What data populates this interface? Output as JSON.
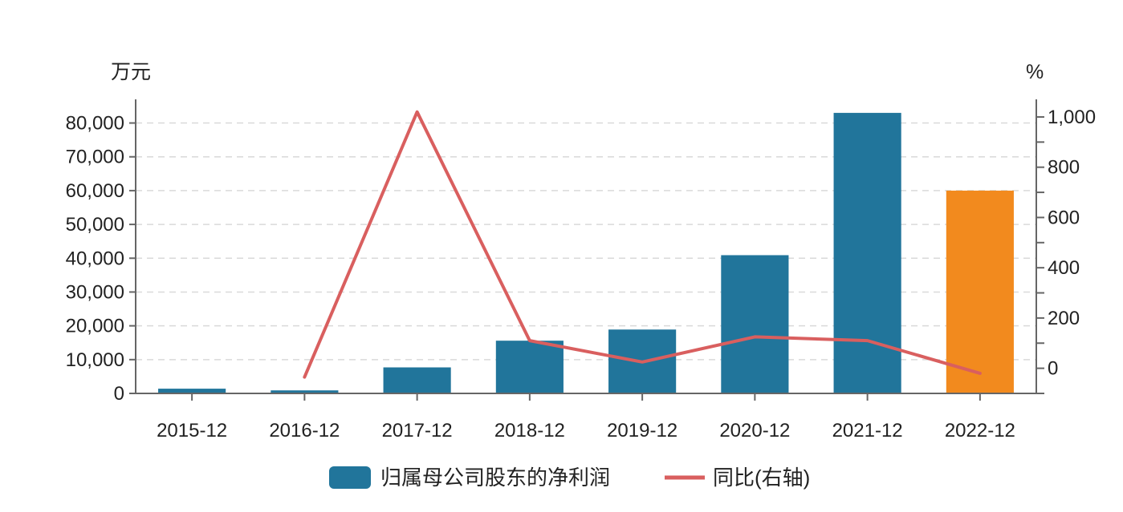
{
  "chart_data": {
    "type": "bar",
    "categories": [
      "2015-12",
      "2016-12",
      "2017-12",
      "2018-12",
      "2019-12",
      "2020-12",
      "2021-12",
      "2022-12"
    ],
    "series": [
      {
        "name": "归属母公司股东的净利润",
        "type": "bar",
        "axis": "left",
        "values": [
          1400,
          900,
          7700,
          15600,
          18900,
          40900,
          83000,
          60000
        ],
        "colors": [
          "#21759b",
          "#21759b",
          "#21759b",
          "#21759b",
          "#21759b",
          "#21759b",
          "#21759b",
          "#f28a1e"
        ]
      },
      {
        "name": "同比(右轴)",
        "type": "line",
        "axis": "right",
        "color": "#d95f5f",
        "values": [
          null,
          -35,
          1020,
          110,
          25,
          125,
          110,
          -20
        ]
      }
    ],
    "left_axis": {
      "unit": "万元",
      "ylim": [
        0,
        87000
      ],
      "ticks": [
        0,
        10000,
        20000,
        30000,
        40000,
        50000,
        60000,
        70000,
        80000
      ],
      "tick_labels": [
        "0",
        "10,000",
        "20,000",
        "30,000",
        "40,000",
        "50,000",
        "60,000",
        "70,000",
        "80,000"
      ]
    },
    "right_axis": {
      "unit": "%",
      "ylim": [
        -100,
        1070
      ],
      "ticks": [
        0,
        200,
        400,
        600,
        800,
        1000
      ],
      "tick_labels": [
        "0",
        "200",
        "400",
        "600",
        "800",
        "1,000"
      ]
    },
    "grid": true,
    "legend_position": "bottom-center",
    "colors": {
      "bar": "#21759b",
      "bar_highlight": "#f28a1e",
      "line": "#d95f5f",
      "grid": "#d9d9d9",
      "axis": "#666666"
    }
  }
}
